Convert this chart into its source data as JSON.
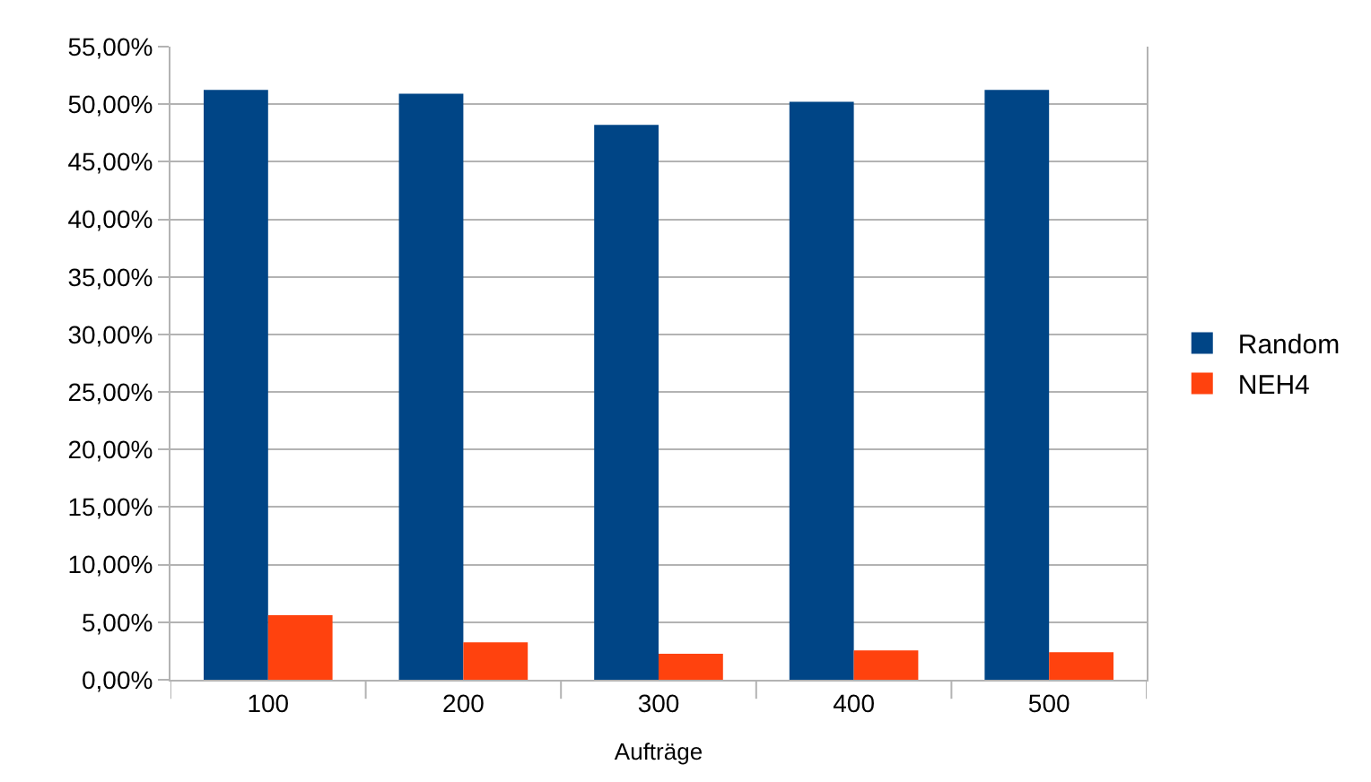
{
  "chart_data": {
    "type": "bar",
    "xlabel": "Aufträge",
    "categories": [
      "100",
      "200",
      "300",
      "400",
      "500"
    ],
    "series": [
      {
        "name": "Random",
        "color": "#004586",
        "values": [
          51.25,
          50.9,
          48.2,
          50.2,
          51.25
        ]
      },
      {
        "name": "NEH4",
        "color": "#ff420e",
        "values": [
          5.6,
          3.25,
          2.25,
          2.55,
          2.4
        ]
      }
    ],
    "ylim": [
      0,
      55
    ],
    "yticks": [
      {
        "value": 0,
        "label": "0,00%"
      },
      {
        "value": 5,
        "label": "5,00%"
      },
      {
        "value": 10,
        "label": "10,00%"
      },
      {
        "value": 15,
        "label": "15,00%"
      },
      {
        "value": 20,
        "label": "20,00%"
      },
      {
        "value": 25,
        "label": "25,00%"
      },
      {
        "value": 30,
        "label": "30,00%"
      },
      {
        "value": 35,
        "label": "35,00%"
      },
      {
        "value": 40,
        "label": "40,00%"
      },
      {
        "value": 45,
        "label": "45,00%"
      },
      {
        "value": 50,
        "label": "50,00%"
      },
      {
        "value": 55,
        "label": "55,00%"
      }
    ],
    "grid": "y",
    "legend": "right"
  }
}
